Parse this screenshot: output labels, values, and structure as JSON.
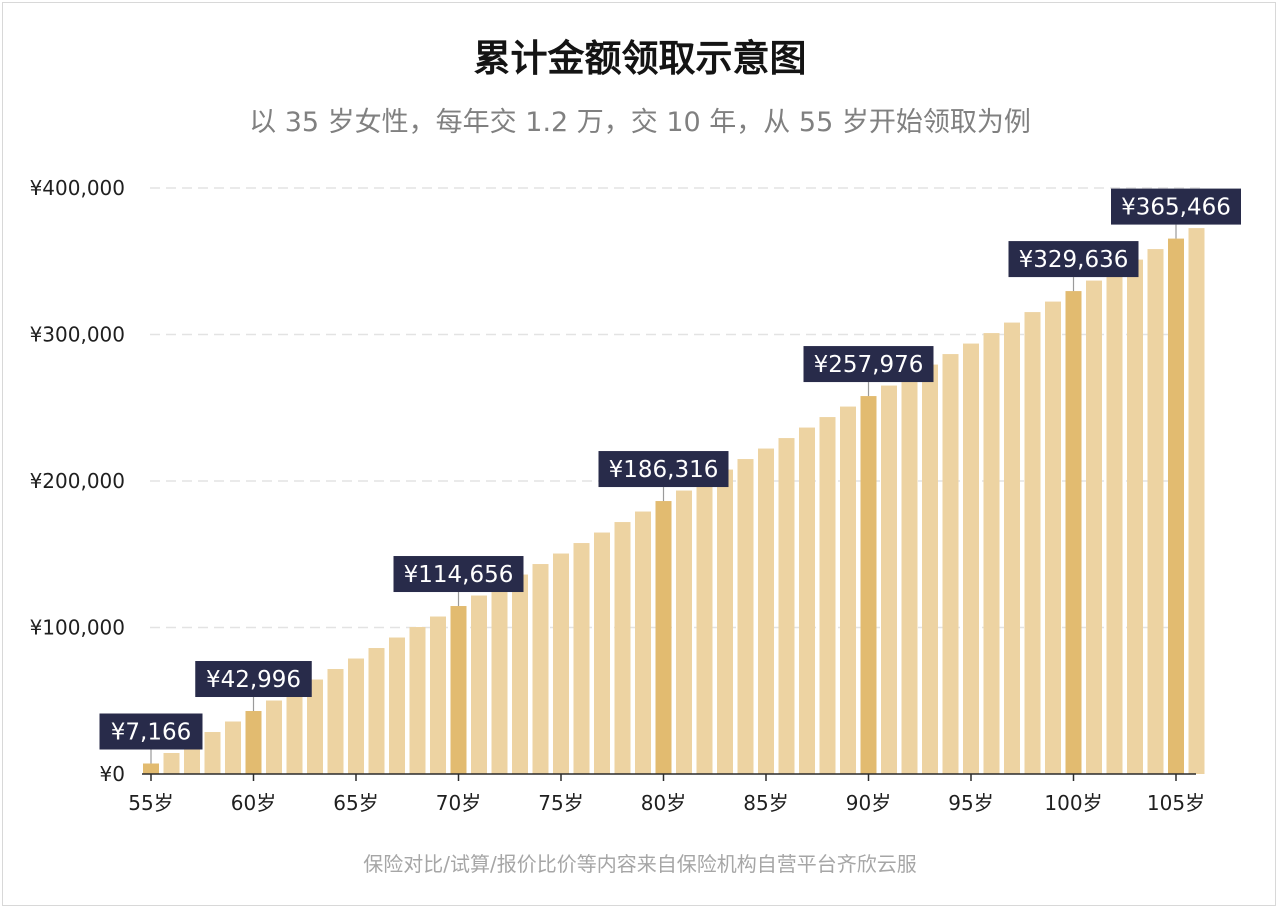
{
  "title": "累计金额领取示意图",
  "subtitle": "以 35 岁女性，每年交 1.2 万，交 10 年，从 55 岁开始领取为例",
  "footer": "保险对比/试算/报价比价等内容来自保险机构自营平台齐欣云服",
  "colors": {
    "bar": "#edd3a2",
    "bar_highlight": "#e2bb70",
    "callout_bg": "#282b4a",
    "callout_text": "#ffffff",
    "grid": "#e3e3e3",
    "axis": "#2b2b2b",
    "leader": "#9a9a9a"
  },
  "chart_data": {
    "type": "bar",
    "title": "累计金额领取示意图",
    "subtitle": "以 35 岁女性，每年交 1.2 万，交 10 年，从 55 岁开始领取为例",
    "xlabel": "",
    "ylabel": "",
    "x": [
      55,
      56,
      57,
      58,
      59,
      60,
      61,
      62,
      63,
      64,
      65,
      66,
      67,
      68,
      69,
      70,
      71,
      72,
      73,
      74,
      75,
      76,
      77,
      78,
      79,
      80,
      81,
      82,
      83,
      84,
      85,
      86,
      87,
      88,
      89,
      90,
      91,
      92,
      93,
      94,
      95,
      96,
      97,
      98,
      99,
      100,
      101,
      102,
      103,
      104,
      105,
      106
    ],
    "values": [
      7166,
      14330,
      21500,
      28660,
      35830,
      42996,
      50160,
      57330,
      64490,
      71660,
      78830,
      85990,
      93160,
      100320,
      107490,
      114656,
      121820,
      128990,
      136150,
      143320,
      150490,
      157650,
      164820,
      171980,
      179150,
      186316,
      193480,
      200650,
      207810,
      214980,
      222150,
      229310,
      236480,
      243640,
      250810,
      257976,
      265140,
      272310,
      279470,
      286640,
      293810,
      300970,
      308140,
      315300,
      322470,
      329636,
      336800,
      343970,
      351130,
      358300,
      365466,
      372630
    ],
    "highlighted_x": [
      55,
      60,
      70,
      80,
      90,
      100,
      105
    ],
    "callouts": [
      {
        "x": 55,
        "label": "¥7,166"
      },
      {
        "x": 60,
        "label": "¥42,996"
      },
      {
        "x": 70,
        "label": "¥114,656"
      },
      {
        "x": 80,
        "label": "¥186,316"
      },
      {
        "x": 90,
        "label": "¥257,976"
      },
      {
        "x": 100,
        "label": "¥329,636"
      },
      {
        "x": 105,
        "label": "¥365,466"
      }
    ],
    "y_ticks": [
      0,
      100000,
      200000,
      300000,
      400000
    ],
    "y_tick_labels": [
      "¥0",
      "¥100,000",
      "¥200,000",
      "¥300,000",
      "¥400,000"
    ],
    "x_ticks": [
      55,
      60,
      65,
      70,
      75,
      80,
      85,
      90,
      95,
      100,
      105
    ],
    "x_tick_labels": [
      "55岁",
      "60岁",
      "65岁",
      "70岁",
      "75岁",
      "80岁",
      "85岁",
      "90岁",
      "95岁",
      "100岁",
      "105岁"
    ],
    "ylim": [
      0,
      400000
    ],
    "grid": true,
    "legend": "none"
  }
}
